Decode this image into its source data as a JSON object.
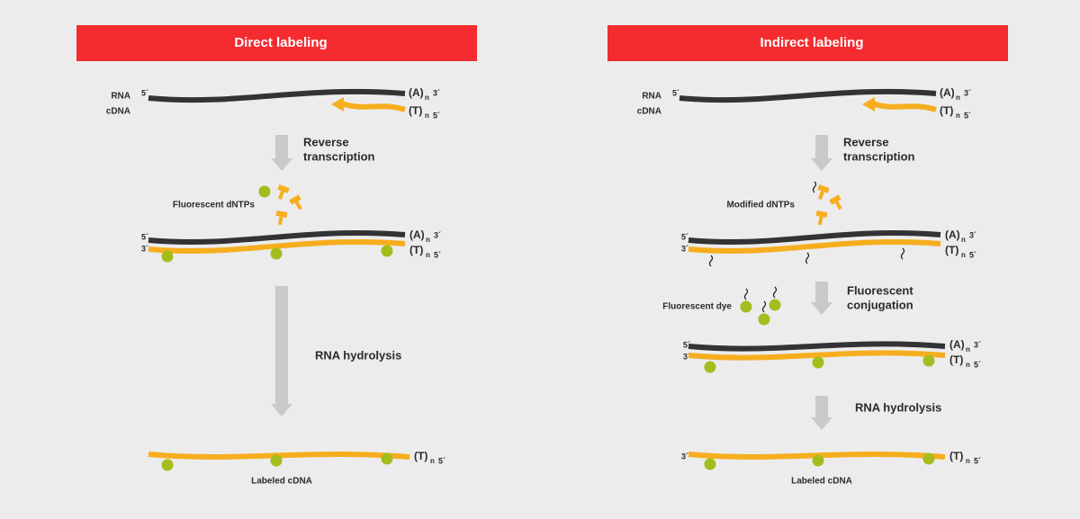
{
  "ends": {
    "five": "5´",
    "three": "3´",
    "a": "(A)",
    "t": "(T)",
    "n": "n"
  },
  "panels": [
    {
      "title": "Direct labeling",
      "rna": "RNA",
      "cdna": "cDNA",
      "step1": [
        "Reverse",
        "transcription"
      ],
      "reagent": "Fluorescent dNTPs",
      "step2": "RNA hydrolysis",
      "product": "Labeled cDNA"
    },
    {
      "title": "Indirect labeling",
      "rna": "RNA",
      "cdna": "cDNA",
      "step1": [
        "Reverse",
        "transcription"
      ],
      "reagent": "Modified dNTPs",
      "dye": "Fluorescent dye",
      "conjugation": [
        "Fluorescent",
        "conjugation"
      ],
      "step2": "RNA hydrolysis",
      "product": "Labeled cDNA"
    }
  ]
}
